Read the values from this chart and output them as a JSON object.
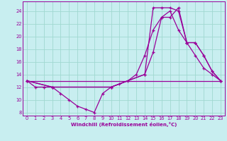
{
  "xlabel": "Windchill (Refroidissement éolien,°C)",
  "xlim": [
    -0.5,
    23.5
  ],
  "ylim": [
    7.5,
    25.5
  ],
  "xticks": [
    0,
    1,
    2,
    3,
    4,
    5,
    6,
    7,
    8,
    9,
    10,
    11,
    12,
    13,
    14,
    15,
    16,
    17,
    18,
    19,
    20,
    21,
    22,
    23
  ],
  "yticks": [
    8,
    10,
    12,
    14,
    16,
    18,
    20,
    22,
    24
  ],
  "bg_color": "#c8eef0",
  "grid_color": "#a0d8d0",
  "line_color": "#990099",
  "line1_x": [
    0,
    1,
    2,
    3,
    4,
    5,
    6,
    7,
    8,
    9,
    10,
    11,
    12,
    13,
    14,
    15,
    16,
    17,
    18,
    19,
    20,
    21,
    22,
    23
  ],
  "line1_y": [
    13,
    12,
    12,
    12,
    11,
    10,
    9,
    8.5,
    8,
    11,
    12,
    12.5,
    13,
    14,
    17,
    21,
    23,
    23,
    24.5,
    19,
    17,
    15,
    14,
    13
  ],
  "line2_x": [
    0,
    23
  ],
  "line2_y": [
    13,
    13
  ],
  "line3_x": [
    0,
    3,
    10,
    14,
    15,
    16,
    17,
    18,
    19,
    20,
    21,
    22,
    23
  ],
  "line3_y": [
    13,
    12,
    12,
    14,
    24.5,
    24.5,
    24.5,
    24,
    19,
    19,
    17,
    14.5,
    13
  ],
  "line4_x": [
    0,
    3,
    10,
    14,
    15,
    16,
    17,
    18,
    19,
    20,
    21,
    22,
    23
  ],
  "line4_y": [
    13,
    12,
    12,
    14,
    17.5,
    23,
    24,
    21,
    19,
    19,
    17,
    14.5,
    13
  ]
}
